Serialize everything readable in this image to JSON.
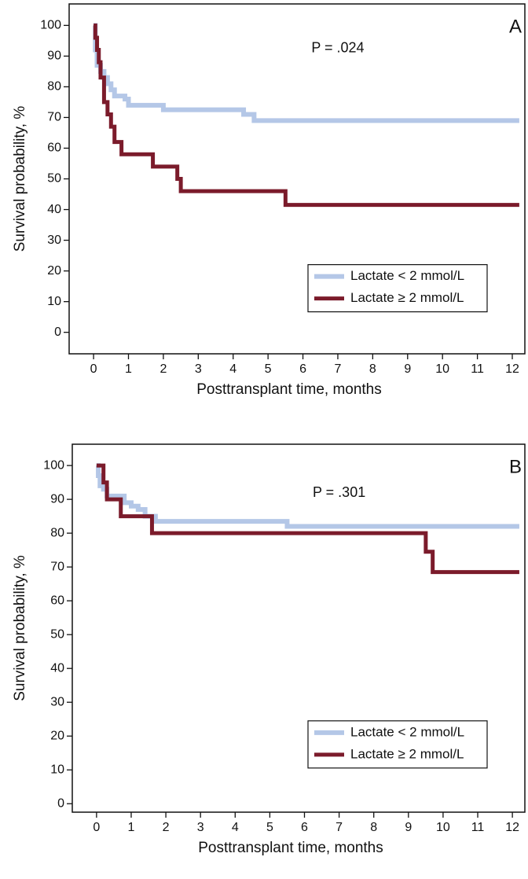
{
  "chart_data": [
    {
      "type": "step",
      "panel_label": "A",
      "annotation": "P = .024",
      "x_label": "Posttransplant time, months",
      "y_label": "Survival probability, %",
      "xlim": [
        -0.7,
        12.36
      ],
      "ylim": [
        -7,
        107
      ],
      "xticks": [
        0,
        1,
        2,
        3,
        4,
        5,
        6,
        7,
        8,
        9,
        10,
        11,
        12
      ],
      "yticks": [
        0,
        10,
        20,
        30,
        40,
        50,
        60,
        70,
        80,
        90,
        100
      ],
      "legend": "lower right",
      "series": [
        {
          "name": "Lactate < 2 mmol/L",
          "color": "#b4c7e7",
          "x": [
            0,
            0.05,
            0.1,
            0.2,
            0.3,
            0.4,
            0.5,
            0.6,
            0.9,
            1,
            2,
            4.3,
            4.6,
            12.2
          ],
          "values": [
            100,
            92,
            87,
            85,
            83,
            81,
            79,
            77,
            76,
            74,
            72.5,
            71,
            69,
            69
          ]
        },
        {
          "name": "Lactate ≥ 2 mmol/L",
          "color": "#7b1b2b",
          "x": [
            0,
            0.05,
            0.1,
            0.15,
            0.2,
            0.3,
            0.4,
            0.5,
            0.6,
            0.8,
            1.7,
            2.4,
            2.5,
            5.5,
            12.2
          ],
          "values": [
            100,
            96,
            92,
            88,
            83,
            75,
            71,
            67,
            62,
            58,
            54,
            50,
            46,
            41.5,
            41.5
          ]
        }
      ]
    },
    {
      "type": "step",
      "panel_label": "B",
      "annotation": "P = .301",
      "x_label": "Posttransplant time, months",
      "y_label": "Survival probability, %",
      "xlim": [
        -0.7,
        12.36
      ],
      "ylim": [
        -2.5,
        106.3
      ],
      "xticks": [
        0,
        1,
        2,
        3,
        4,
        5,
        6,
        7,
        8,
        9,
        10,
        11,
        12
      ],
      "yticks": [
        0,
        10,
        20,
        30,
        40,
        50,
        60,
        70,
        80,
        90,
        100
      ],
      "legend": "lower right",
      "series": [
        {
          "name": "Lactate < 2 mmol/L",
          "color": "#b4c7e7",
          "x": [
            0,
            0.05,
            0.1,
            0.2,
            0.3,
            0.8,
            1,
            1.2,
            1.4,
            1.7,
            5.5,
            12.2
          ],
          "values": [
            100,
            97,
            94,
            93,
            91,
            89,
            88,
            87,
            85,
            83.5,
            82,
            82
          ]
        },
        {
          "name": "Lactate ≥ 2 mmol/L",
          "color": "#7b1b2b",
          "x": [
            0,
            0.2,
            0.3,
            0.7,
            1.6,
            9.5,
            9.7,
            12.2
          ],
          "values": [
            100,
            95,
            90,
            85,
            80,
            74.5,
            68.5,
            68.5
          ]
        }
      ]
    }
  ]
}
